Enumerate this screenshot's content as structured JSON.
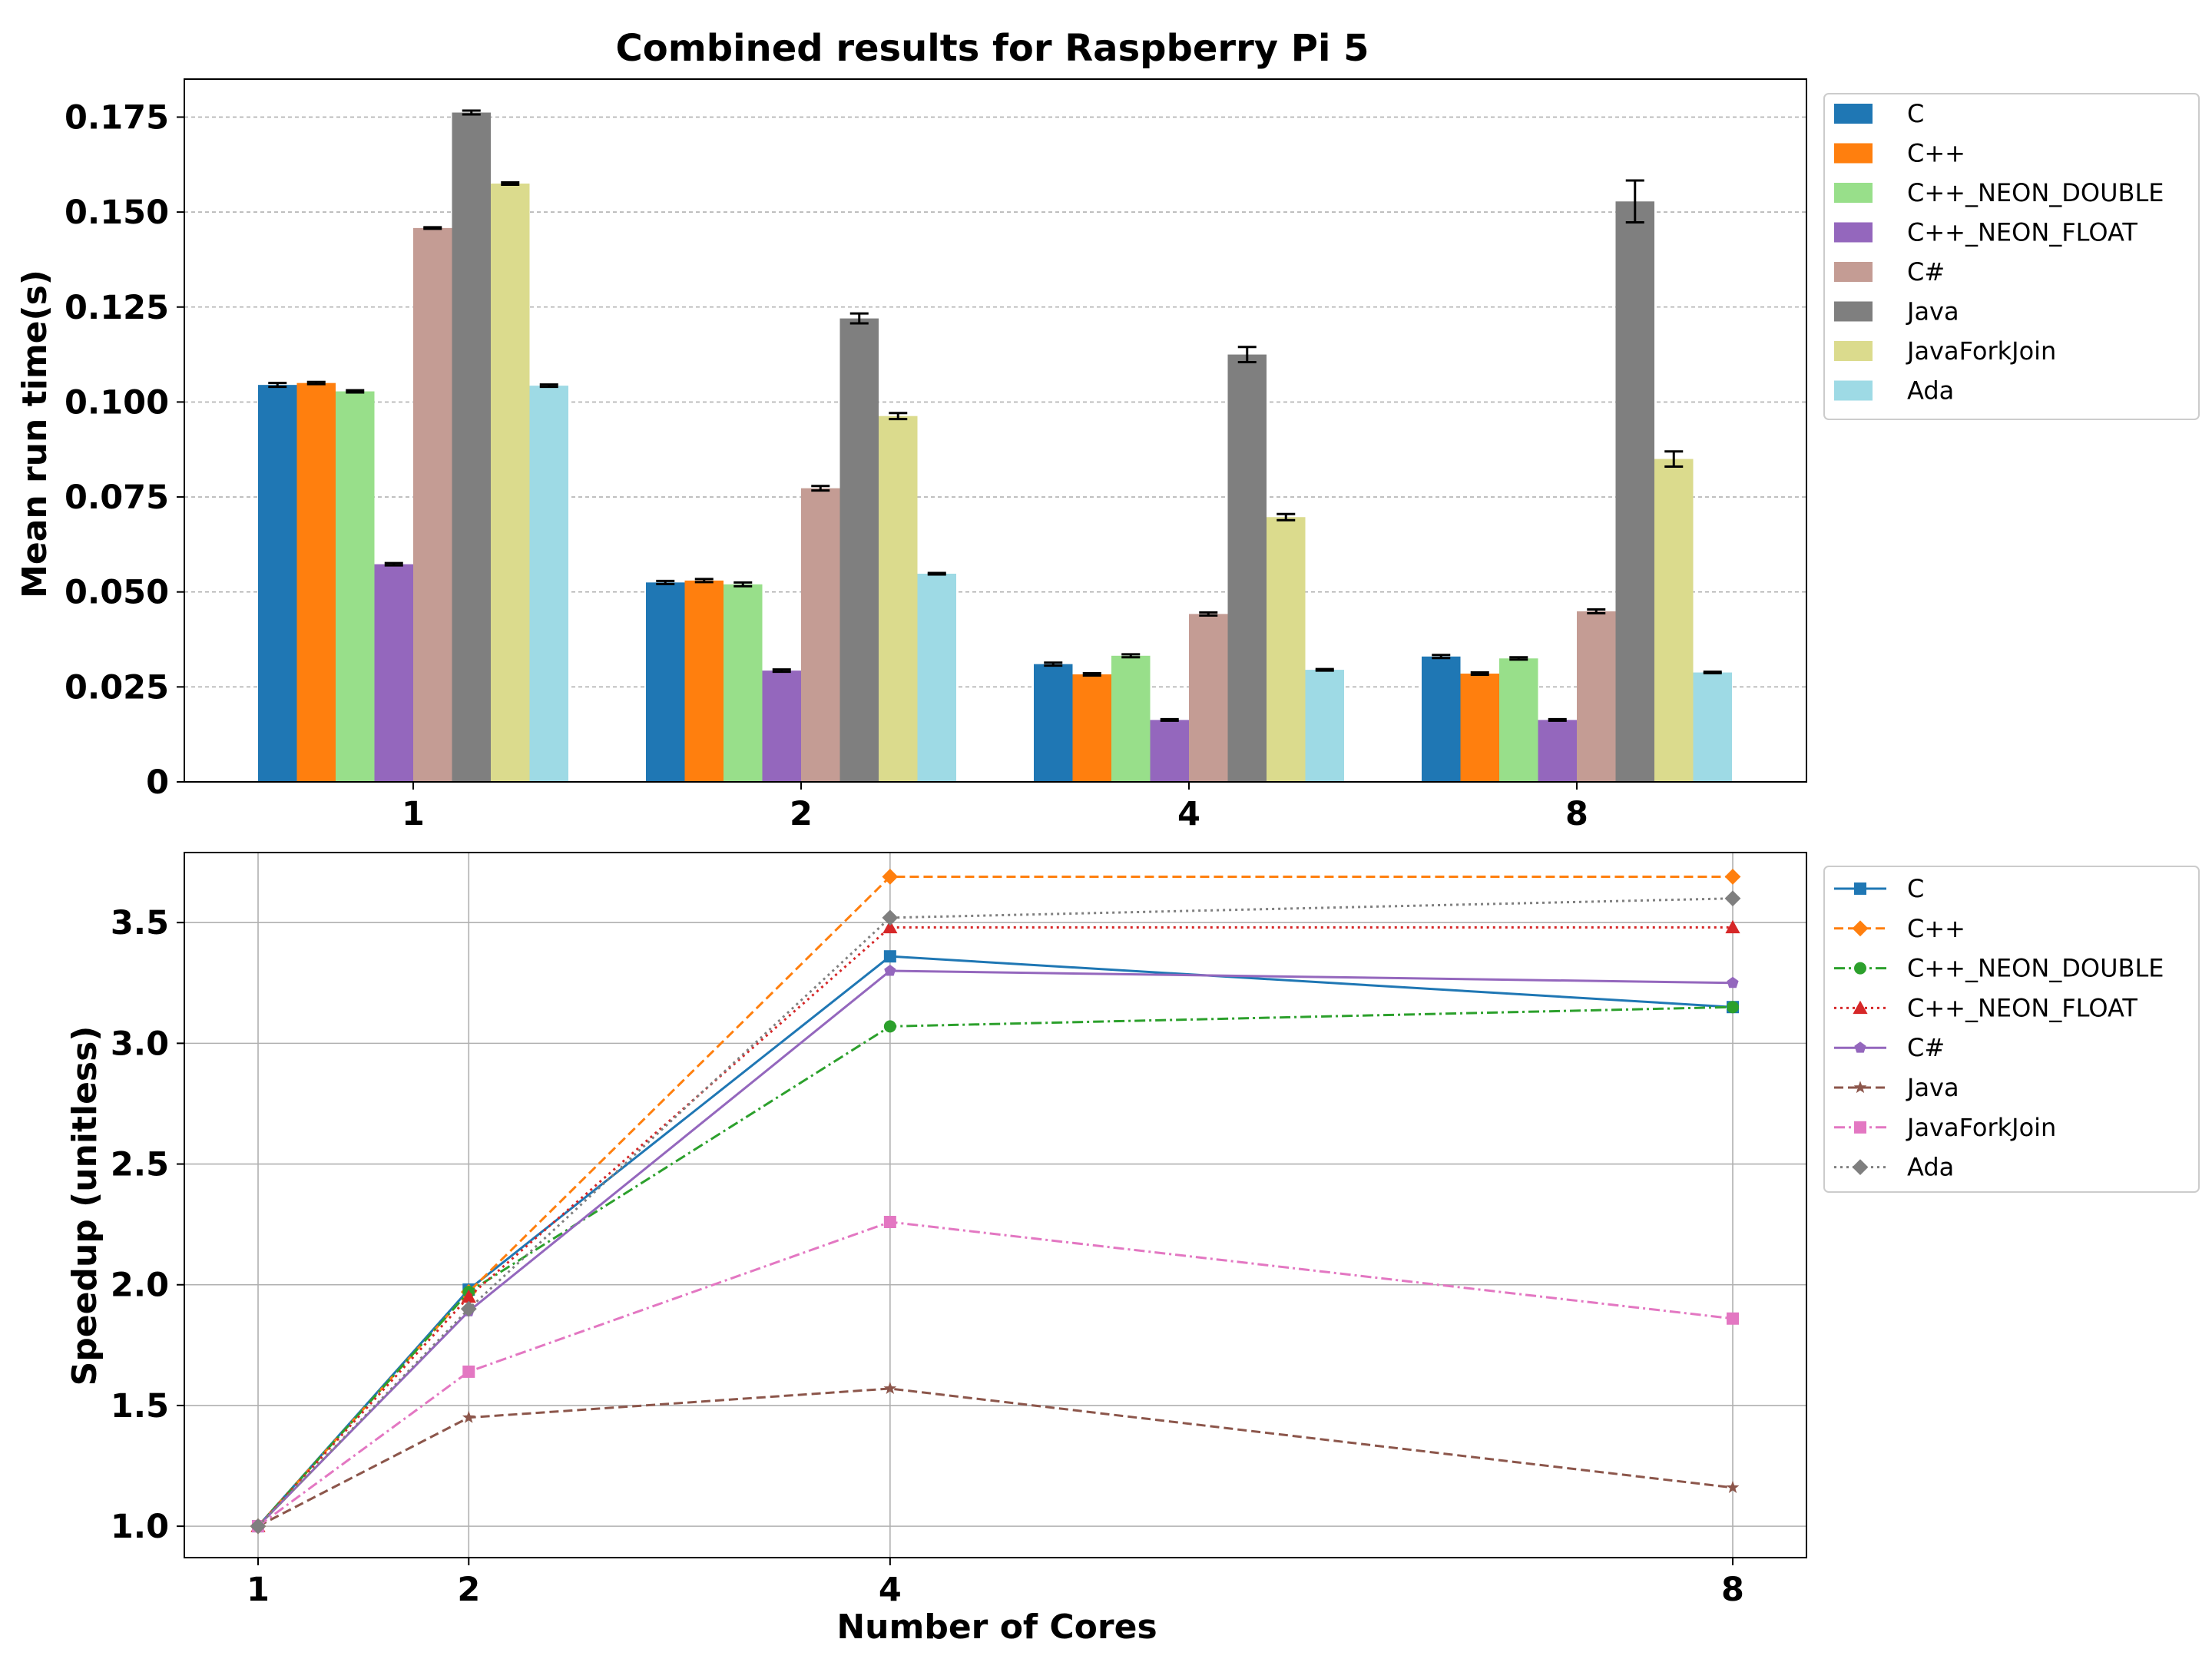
{
  "chart_data": [
    {
      "type": "bar",
      "title": "Combined results for Raspberry Pi 5",
      "xlabel": "",
      "ylabel": "Mean run time(s)",
      "ylim": [
        0,
        0.185
      ],
      "yticks": [
        0,
        0.025,
        0.05,
        0.075,
        0.1,
        0.125,
        0.15,
        0.175
      ],
      "ytick_labels": [
        "0",
        "0.025",
        "0.050",
        "0.075",
        "0.100",
        "0.125",
        "0.150",
        "0.175"
      ],
      "categories": [
        "1",
        "2",
        "4",
        "8"
      ],
      "grid": "y-dashed",
      "legend": "outside-right-top",
      "series": [
        {
          "name": "C",
          "color": "#1f77b4",
          "values": [
            0.1045,
            0.0525,
            0.031,
            0.033
          ],
          "errors": [
            0.0005,
            0.0004,
            0.0004,
            0.0004
          ]
        },
        {
          "name": "C++",
          "color": "#ff7f0e",
          "values": [
            0.105,
            0.053,
            0.0283,
            0.0285
          ],
          "errors": [
            0.0003,
            0.0004,
            0.0003,
            0.0003
          ]
        },
        {
          "name": "C++_NEON_DOUBLE",
          "color": "#98df8a",
          "values": [
            0.1028,
            0.052,
            0.0332,
            0.0325
          ],
          "errors": [
            0.0003,
            0.0005,
            0.0004,
            0.0003
          ]
        },
        {
          "name": "C++_NEON_FLOAT",
          "color": "#9467bd",
          "values": [
            0.0573,
            0.0293,
            0.0163,
            0.0163
          ],
          "errors": [
            0.0003,
            0.0003,
            0.0002,
            0.0002
          ]
        },
        {
          "name": "C#",
          "color": "#c49c94",
          "values": [
            0.1458,
            0.0773,
            0.0442,
            0.0449
          ],
          "errors": [
            0.0002,
            0.0006,
            0.0004,
            0.0005
          ]
        },
        {
          "name": "Java",
          "color": "#7f7f7f",
          "values": [
            0.1762,
            0.122,
            0.1125,
            0.1528
          ],
          "errors": [
            0.0005,
            0.0013,
            0.002,
            0.0055
          ]
        },
        {
          "name": "JavaForkJoin",
          "color": "#dbdb8d",
          "values": [
            0.1575,
            0.0963,
            0.0697,
            0.085
          ],
          "errors": [
            0.0003,
            0.0008,
            0.0008,
            0.002
          ]
        },
        {
          "name": "Ada",
          "color": "#9edae5",
          "values": [
            0.1043,
            0.0548,
            0.0295,
            0.0288
          ],
          "errors": [
            0.0003,
            0.0002,
            0.0002,
            0.0002
          ]
        }
      ]
    },
    {
      "type": "line",
      "title": "",
      "xlabel": "Number of Cores",
      "ylabel": "Speedup (unitless)",
      "x": [
        1,
        2,
        4,
        8
      ],
      "xlim": [
        0.65,
        8.35
      ],
      "ylim": [
        0.87,
        3.79
      ],
      "yticks": [
        1.0,
        1.5,
        2.0,
        2.5,
        3.0,
        3.5
      ],
      "ytick_labels": [
        "1.0",
        "1.5",
        "2.0",
        "2.5",
        "3.0",
        "3.5"
      ],
      "xtick_labels": [
        "1",
        "2",
        "4",
        "8"
      ],
      "grid": "both-solid",
      "legend": "outside-right-top",
      "series": [
        {
          "name": "C",
          "color": "#1f77b4",
          "dash": "solid",
          "marker": "square",
          "values": [
            1.0,
            1.98,
            3.36,
            3.15
          ]
        },
        {
          "name": "C++",
          "color": "#ff7f0e",
          "dash": "dashed",
          "marker": "diamond",
          "values": [
            1.0,
            1.97,
            3.69,
            3.69
          ]
        },
        {
          "name": "C++_NEON_DOUBLE",
          "color": "#2ca02c",
          "dash": "dashdot",
          "marker": "circle",
          "values": [
            1.0,
            1.97,
            3.07,
            3.15
          ]
        },
        {
          "name": "C++_NEON_FLOAT",
          "color": "#d62728",
          "dash": "dotted",
          "marker": "triangle",
          "values": [
            1.0,
            1.95,
            3.48,
            3.48
          ]
        },
        {
          "name": "C#",
          "color": "#9467bd",
          "dash": "solid",
          "marker": "pentagon",
          "values": [
            1.0,
            1.89,
            3.3,
            3.25
          ]
        },
        {
          "name": "Java",
          "color": "#8c564b",
          "dash": "dashed",
          "marker": "star",
          "values": [
            1.0,
            1.45,
            1.57,
            1.16
          ]
        },
        {
          "name": "JavaForkJoin",
          "color": "#e377c2",
          "dash": "dashdot",
          "marker": "square",
          "values": [
            1.0,
            1.64,
            2.26,
            1.86
          ]
        },
        {
          "name": "Ada",
          "color": "#7f7f7f",
          "dash": "dotted",
          "marker": "diamond",
          "values": [
            1.0,
            1.9,
            3.52,
            3.6
          ]
        }
      ]
    }
  ]
}
